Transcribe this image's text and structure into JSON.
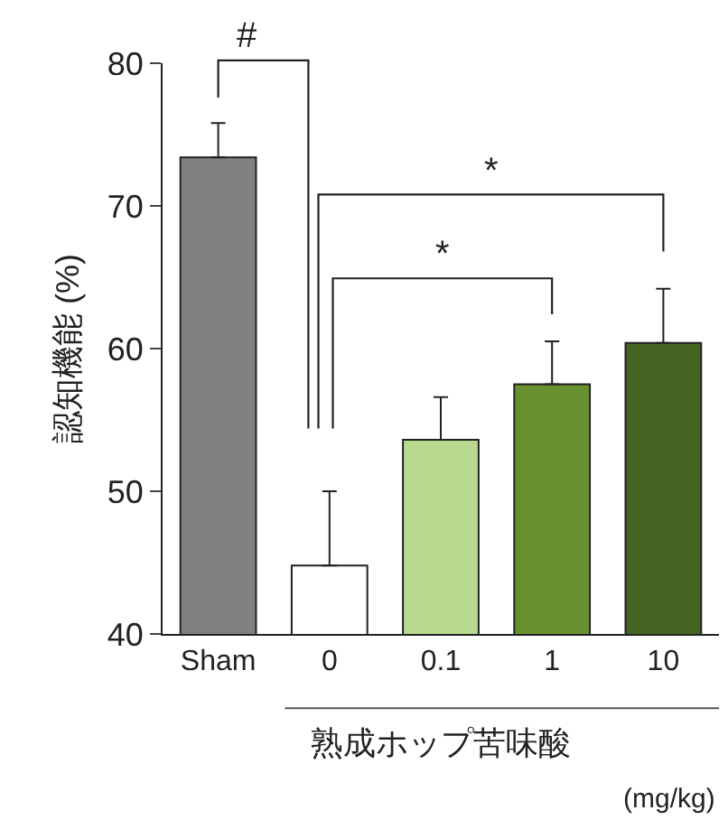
{
  "chart_data": {
    "type": "bar",
    "categories": [
      "Sham",
      "0",
      "0.1",
      "1",
      "10"
    ],
    "values": [
      73.4,
      44.8,
      53.6,
      57.5,
      60.4
    ],
    "colors": [
      "#808080",
      "#ffffff",
      "#b9d98f",
      "#6a9130",
      "#466422"
    ],
    "errors": [
      [
        73.4,
        75.8
      ],
      [
        44.8,
        50.0
      ],
      [
        53.6,
        56.6
      ],
      [
        57.5,
        60.5
      ],
      [
        60.4,
        64.2
      ]
    ],
    "ylabel": "認知機能 (%)",
    "xlabel": "熟成ホップ苦味酸",
    "ylim": [
      40,
      80
    ],
    "yticks": [
      40,
      50,
      60,
      70,
      80
    ],
    "annotations": [
      "#",
      "*",
      "*",
      "(mg/kg)"
    ]
  }
}
